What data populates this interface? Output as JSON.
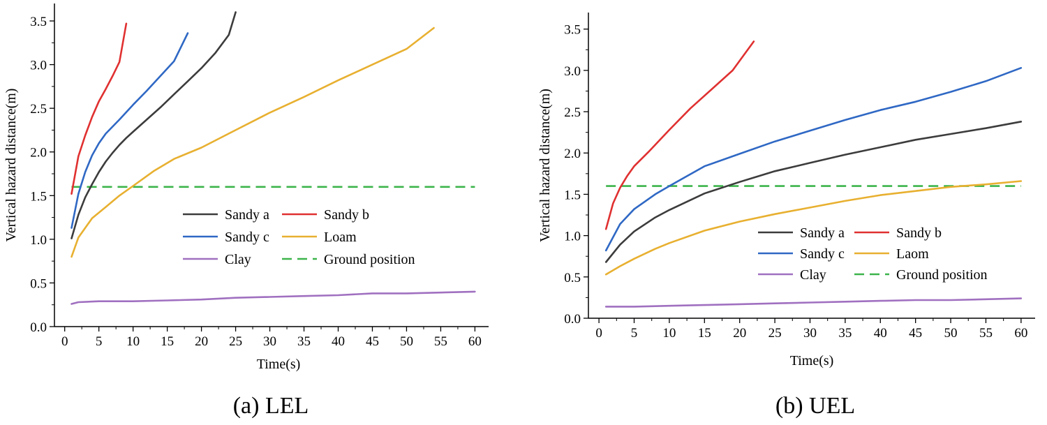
{
  "chart_data": [
    {
      "type": "line",
      "caption": "(a) LEL",
      "xlabel": "Time(s)",
      "ylabel": "Vertical hazard distance(m)",
      "xlim": [
        -1.5,
        62
      ],
      "ylim": [
        0,
        3.7
      ],
      "xticks": [
        0,
        5,
        10,
        15,
        20,
        25,
        30,
        35,
        40,
        45,
        50,
        55,
        60
      ],
      "yticks": [
        0.0,
        0.5,
        1.0,
        1.5,
        2.0,
        2.5,
        3.0,
        3.5
      ],
      "ytick_labels": [
        "0.0",
        "0.5",
        "1.0",
        "1.5",
        "2.0",
        "2.5",
        "3.0",
        "3.5"
      ],
      "legend": {
        "placement": "center-right",
        "entries": [
          "Sandy a",
          "Sandy b",
          "Sandy c",
          "Loam",
          "Clay",
          "Ground position"
        ]
      },
      "series": [
        {
          "name": "Sandy a",
          "color": "#3c3c3c",
          "x": [
            1,
            2,
            3,
            4,
            5,
            6,
            7,
            8,
            9,
            10,
            12,
            14,
            16,
            18,
            20,
            22,
            24,
            25
          ],
          "y": [
            1.01,
            1.28,
            1.48,
            1.63,
            1.77,
            1.89,
            1.99,
            2.08,
            2.16,
            2.23,
            2.37,
            2.51,
            2.66,
            2.81,
            2.96,
            3.13,
            3.34,
            3.6
          ]
        },
        {
          "name": "Sandy b",
          "color": "#e03030",
          "x": [
            1,
            2,
            3,
            4,
            5,
            6,
            7,
            8,
            9
          ],
          "y": [
            1.52,
            1.95,
            2.19,
            2.4,
            2.58,
            2.72,
            2.87,
            3.03,
            3.47
          ]
        },
        {
          "name": "Sandy c",
          "color": "#2f68c4",
          "x": [
            1,
            2,
            3,
            4,
            5,
            6,
            8,
            10,
            12,
            14,
            16,
            18
          ],
          "y": [
            1.13,
            1.52,
            1.77,
            1.96,
            2.1,
            2.21,
            2.37,
            2.54,
            2.7,
            2.87,
            3.04,
            3.36
          ]
        },
        {
          "name": "Loam",
          "color": "#e8b030",
          "x": [
            1,
            2,
            4,
            6,
            8,
            10,
            13,
            16,
            20,
            25,
            30,
            35,
            40,
            45,
            50,
            54
          ],
          "y": [
            0.8,
            1.02,
            1.24,
            1.37,
            1.5,
            1.61,
            1.78,
            1.92,
            2.05,
            2.25,
            2.45,
            2.63,
            2.82,
            3.0,
            3.18,
            3.42
          ]
        },
        {
          "name": "Clay",
          "color": "#a070c0",
          "x": [
            1,
            2,
            5,
            10,
            15,
            20,
            25,
            30,
            35,
            40,
            45,
            50,
            55,
            60
          ],
          "y": [
            0.26,
            0.28,
            0.29,
            0.29,
            0.3,
            0.31,
            0.33,
            0.34,
            0.35,
            0.36,
            0.38,
            0.38,
            0.39,
            0.4
          ]
        }
      ],
      "reference_line": {
        "name": "Ground position",
        "color": "#3cb44b",
        "y": 1.6,
        "x_range": [
          1,
          60
        ]
      }
    },
    {
      "type": "line",
      "caption": "(b) UEL",
      "xlabel": "Time(s)",
      "ylabel": "Vertical hazard distance(m)",
      "xlim": [
        -1.5,
        62
      ],
      "ylim": [
        0,
        3.7
      ],
      "xticks": [
        0,
        5,
        10,
        15,
        20,
        25,
        30,
        35,
        40,
        45,
        50,
        55,
        60
      ],
      "yticks": [
        0.0,
        0.5,
        1.0,
        1.5,
        2.0,
        2.5,
        3.0,
        3.5
      ],
      "ytick_labels": [
        "0.0",
        "0.5",
        "1.0",
        "1.5",
        "2.0",
        "2.5",
        "3.0",
        "3.5"
      ],
      "legend": {
        "placement": "center-right",
        "entries": [
          "Sandy a",
          "Sandy b",
          "Sandy c",
          "Laom",
          "Clay",
          "Ground position"
        ]
      },
      "series": [
        {
          "name": "Sandy a",
          "color": "#3c3c3c",
          "x": [
            1,
            3,
            5,
            8,
            10,
            15,
            20,
            25,
            30,
            35,
            40,
            45,
            50,
            55,
            60
          ],
          "y": [
            0.68,
            0.89,
            1.05,
            1.22,
            1.31,
            1.51,
            1.65,
            1.78,
            1.88,
            1.98,
            2.07,
            2.16,
            2.23,
            2.3,
            2.38
          ]
        },
        {
          "name": "Sandy b",
          "color": "#e03030",
          "x": [
            1,
            2,
            3,
            4,
            5,
            7,
            10,
            13,
            16,
            19,
            22
          ],
          "y": [
            1.08,
            1.39,
            1.58,
            1.72,
            1.84,
            2.01,
            2.28,
            2.54,
            2.77,
            3.0,
            3.35
          ]
        },
        {
          "name": "Sandy c",
          "color": "#2f68c4",
          "x": [
            1,
            3,
            5,
            8,
            10,
            15,
            20,
            25,
            30,
            35,
            40,
            45,
            50,
            55,
            60
          ],
          "y": [
            0.82,
            1.14,
            1.32,
            1.5,
            1.6,
            1.84,
            1.99,
            2.14,
            2.27,
            2.4,
            2.52,
            2.62,
            2.74,
            2.87,
            3.03
          ]
        },
        {
          "name": "Laom",
          "color": "#e8b030",
          "x": [
            1,
            3,
            5,
            8,
            10,
            15,
            20,
            25,
            30,
            35,
            40,
            45,
            50,
            55,
            60
          ],
          "y": [
            0.53,
            0.63,
            0.72,
            0.84,
            0.91,
            1.06,
            1.17,
            1.26,
            1.34,
            1.42,
            1.49,
            1.54,
            1.59,
            1.62,
            1.66
          ]
        },
        {
          "name": "Clay",
          "color": "#a070c0",
          "x": [
            1,
            5,
            10,
            15,
            20,
            25,
            30,
            35,
            40,
            45,
            50,
            55,
            60
          ],
          "y": [
            0.14,
            0.14,
            0.15,
            0.16,
            0.17,
            0.18,
            0.19,
            0.2,
            0.21,
            0.22,
            0.22,
            0.23,
            0.24
          ]
        }
      ],
      "reference_line": {
        "name": "Ground position",
        "color": "#3cb44b",
        "y": 1.6,
        "x_range": [
          1,
          60
        ]
      }
    }
  ]
}
